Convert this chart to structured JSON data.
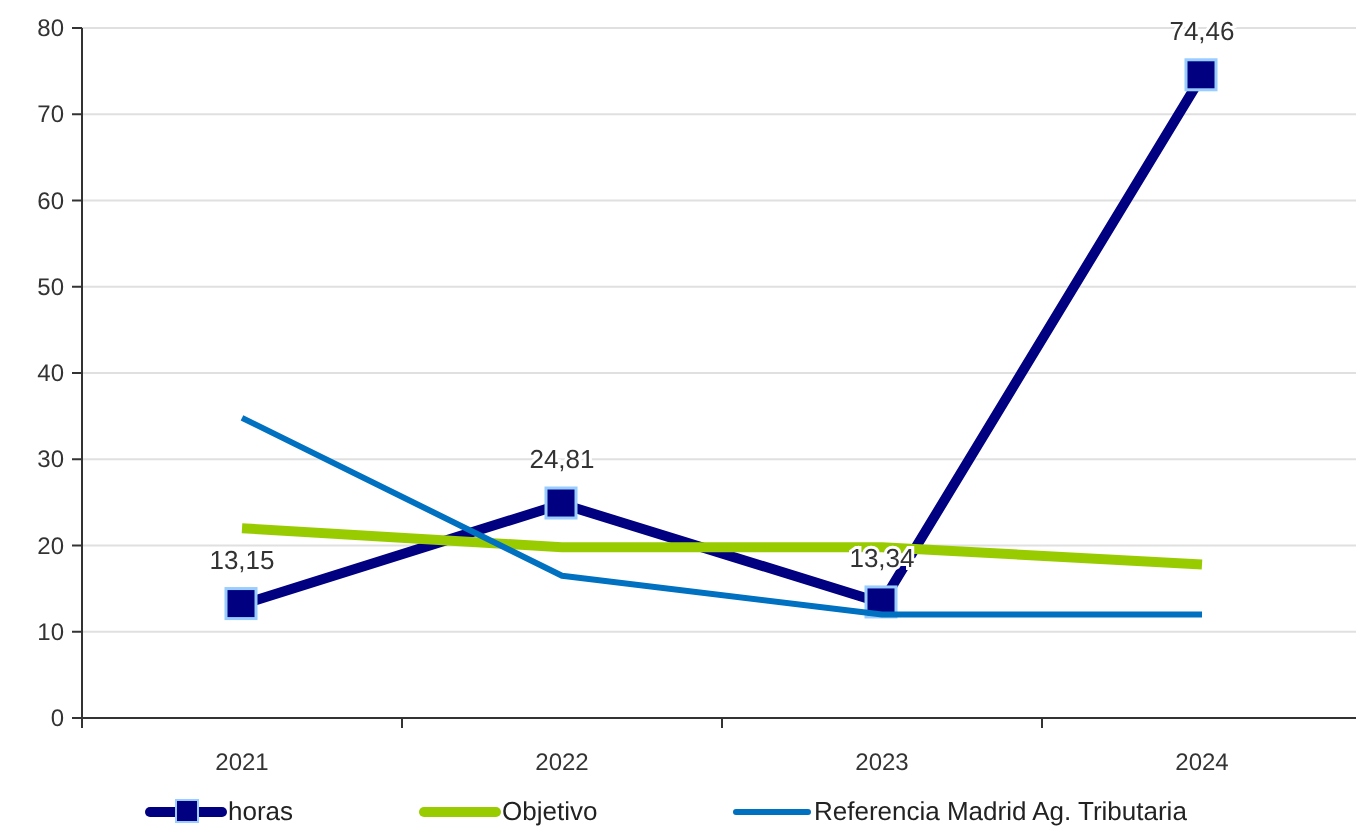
{
  "chart_data": {
    "type": "line",
    "categories": [
      "2021",
      "2022",
      "2023",
      "2024"
    ],
    "series": [
      {
        "name": "horas",
        "color": "#000080",
        "values": [
          13.15,
          24.81,
          13.34,
          74.46
        ],
        "marker": "square",
        "value_labels": [
          "13,15",
          "24,81",
          "13,34",
          "74,46"
        ]
      },
      {
        "name": "Objetivo",
        "color": "#99cc00",
        "values": [
          22,
          19.8,
          19.8,
          17.8
        ],
        "marker": "none"
      },
      {
        "name": "Referencia Madrid Ag. Tributaria",
        "color": "#0070c0",
        "values": [
          34.8,
          16.5,
          12,
          12
        ],
        "marker": "none"
      }
    ],
    "ylim": [
      0,
      80
    ],
    "yticks": [
      0,
      10,
      20,
      30,
      40,
      50,
      60,
      70,
      80
    ],
    "grid": "y",
    "legend": "bottom"
  }
}
